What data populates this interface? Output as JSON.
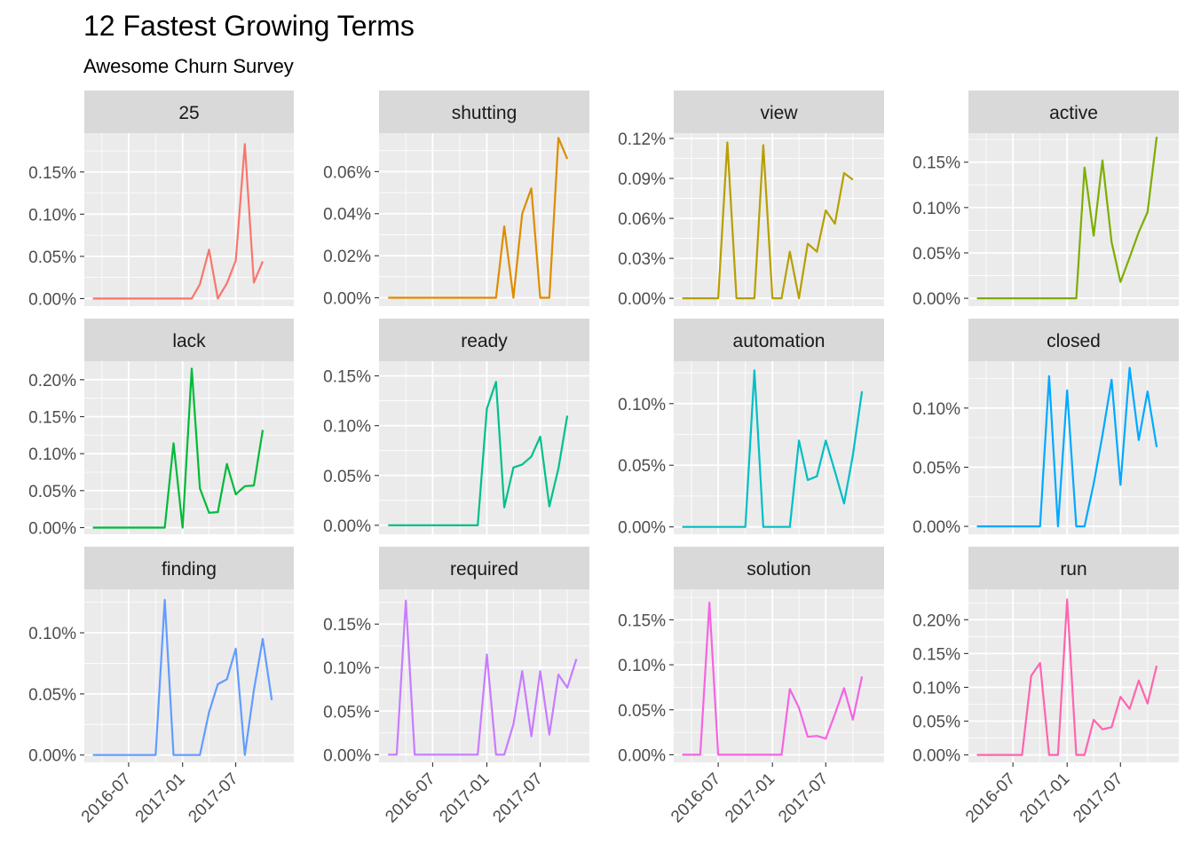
{
  "chart_data": {
    "type": "line",
    "layout": "facet-wrap",
    "title": "12 Fastest Growing Terms",
    "subtitle": "Awesome Churn Survey",
    "x_tick_labels": [
      "2016-07",
      "2017-01",
      "2017-07"
    ],
    "x_tick_values": [
      "2016-07-01",
      "2017-01-01",
      "2017-07-01"
    ],
    "grid": true,
    "legend": "none",
    "panels": [
      {
        "name": "25",
        "color": "#F8766D",
        "start_month": "2016-03",
        "x_range": [
          "2016-02-01",
          "2018-01-15"
        ],
        "y_range": [
          -9e-05,
          0.00196
        ],
        "y_ticks": [
          0,
          0.0005,
          0.001,
          0.0015
        ],
        "y_tick_labels": [
          "0.00%",
          "0.05%",
          "0.10%",
          "0.15%"
        ],
        "values": [
          0,
          0,
          0,
          0,
          0,
          0,
          0,
          0,
          0,
          0,
          0,
          0,
          0.00017,
          0.00058,
          0,
          0.00018,
          0.00045,
          0.00183,
          0.00019,
          0.00044
        ]
      },
      {
        "name": "shutting",
        "color": "#DE8C00",
        "start_month": "2016-02",
        "x_range": [
          "2016-01-01",
          "2017-12-15"
        ],
        "y_range": [
          -4e-05,
          0.000783
        ],
        "y_ticks": [
          0,
          0.0002,
          0.0004,
          0.0006
        ],
        "y_tick_labels": [
          "0.00%",
          "0.02%",
          "0.04%",
          "0.06%"
        ],
        "values": [
          0,
          0,
          0,
          0,
          0,
          0,
          0,
          0,
          0,
          0,
          0,
          0,
          0,
          0.00034,
          0,
          0.0004,
          0.00052,
          0,
          0,
          0.00076,
          0.00066
        ]
      },
      {
        "name": "view",
        "color": "#B79F00",
        "start_month": "2016-03",
        "x_range": [
          "2016-02-01",
          "2018-01-15"
        ],
        "y_range": [
          -5.91e-05,
          0.00124
        ],
        "y_ticks": [
          0,
          0.0003,
          0.0006,
          0.0009,
          0.0012
        ],
        "y_tick_labels": [
          "0.00%",
          "0.03%",
          "0.06%",
          "0.09%",
          "0.12%"
        ],
        "values": [
          0,
          0,
          0,
          0,
          0,
          0.00117,
          0,
          0,
          0,
          0.00115,
          0,
          0,
          0.00035,
          0,
          0.00041,
          0.00035,
          0.00066,
          0.00056,
          0.00094,
          0.00089
        ]
      },
      {
        "name": "active",
        "color": "#7CAE00",
        "start_month": "2016-03",
        "x_range": [
          "2016-02-01",
          "2018-01-15"
        ],
        "y_range": [
          -8.69e-05,
          0.00182
        ],
        "y_ticks": [
          0,
          0.0005,
          0.001,
          0.0015
        ],
        "y_tick_labels": [
          "0.00%",
          "0.05%",
          "0.10%",
          "0.15%"
        ],
        "values": [
          0,
          0,
          0,
          0,
          0,
          0,
          0,
          0,
          0,
          0,
          0,
          0,
          0.00144,
          0.00069,
          0.00152,
          0.00062,
          0.00018,
          0.00045,
          0.00073,
          0.00095,
          0.00178
        ]
      },
      {
        "name": "lack",
        "color": "#00BA38",
        "start_month": "2016-03",
        "x_range": [
          "2016-02-01",
          "2018-01-15"
        ],
        "y_range": [
          -9e-05,
          0.00225
        ],
        "y_ticks": [
          0,
          0.0005,
          0.001,
          0.0015,
          0.002
        ],
        "y_tick_labels": [
          "0.00%",
          "0.05%",
          "0.10%",
          "0.15%",
          "0.20%"
        ],
        "values": [
          0,
          0,
          0,
          0,
          0,
          0,
          0,
          0,
          0,
          0.00114,
          0,
          0.00215,
          0.00053,
          0.0002,
          0.00021,
          0.00086,
          0.00045,
          0.00056,
          0.00057,
          0.00132
        ]
      },
      {
        "name": "ready",
        "color": "#00C08B",
        "start_month": "2016-02",
        "x_range": [
          "2016-01-01",
          "2017-12-15"
        ],
        "y_range": [
          -9e-05,
          0.001647
        ],
        "y_ticks": [
          0,
          0.0005,
          0.001,
          0.0015
        ],
        "y_tick_labels": [
          "0.00%",
          "0.05%",
          "0.10%",
          "0.15%"
        ],
        "values": [
          0,
          0,
          0,
          0,
          0,
          0,
          0,
          0,
          0,
          0,
          0,
          0.00117,
          0.00144,
          0.00018,
          0.00058,
          0.00061,
          0.00069,
          0.00089,
          0.00019,
          0.00057,
          0.0011
        ]
      },
      {
        "name": "automation",
        "color": "#00BFC4",
        "start_month": "2016-03",
        "x_range": [
          "2016-02-01",
          "2018-01-15"
        ],
        "y_range": [
          -6e-05,
          0.001344
        ],
        "y_ticks": [
          0,
          0.0005,
          0.001
        ],
        "y_tick_labels": [
          "0.00%",
          "0.05%",
          "0.10%"
        ],
        "values": [
          0,
          0,
          0,
          0,
          0,
          0,
          0,
          0,
          0.00127,
          0,
          0,
          0,
          0,
          0.0007,
          0.00038,
          0.00041,
          0.0007,
          0.00045,
          0.00019,
          0.00058,
          0.0011
        ]
      },
      {
        "name": "closed",
        "color": "#00A9FF",
        "start_month": "2016-03",
        "x_range": [
          "2016-02-01",
          "2018-01-15"
        ],
        "y_range": [
          -6.67e-05,
          0.001396
        ],
        "y_ticks": [
          0,
          0.0005,
          0.001
        ],
        "y_tick_labels": [
          "0.00%",
          "0.05%",
          "0.10%"
        ],
        "values": [
          0,
          0,
          0,
          0,
          0,
          0,
          0,
          0,
          0.00127,
          0,
          0.00115,
          0,
          0,
          0.00036,
          0.00077,
          0.00124,
          0.00035,
          0.00134,
          0.00073,
          0.00114,
          0.00067
        ]
      },
      {
        "name": "finding",
        "color": "#619CFF",
        "start_month": "2016-03",
        "x_range": [
          "2016-02-01",
          "2018-01-15"
        ],
        "y_range": [
          -6e-05,
          0.001356
        ],
        "y_ticks": [
          0,
          0.0005,
          0.001
        ],
        "y_tick_labels": [
          "0.00%",
          "0.05%",
          "0.10%"
        ],
        "values": [
          0,
          0,
          0,
          0,
          0,
          0,
          0,
          0,
          0.00127,
          0,
          0,
          0,
          0,
          0.00035,
          0.00058,
          0.00062,
          0.00087,
          0,
          0.00053,
          0.00095,
          0.00045
        ]
      },
      {
        "name": "required",
        "color": "#C77CFF",
        "start_month": "2016-02",
        "x_range": [
          "2016-01-01",
          "2017-12-15"
        ],
        "y_range": [
          -8.89e-05,
          0.0019
        ],
        "y_ticks": [
          0,
          0.0005,
          0.001,
          0.0015
        ],
        "y_tick_labels": [
          "0.00%",
          "0.05%",
          "0.10%",
          "0.15%"
        ],
        "values": [
          0,
          0,
          0.00177,
          0,
          0,
          0,
          0,
          0,
          0,
          0,
          0,
          0.00115,
          0,
          0,
          0.00035,
          0.00096,
          0.00021,
          0.00096,
          0.00023,
          0.00092,
          0.00077,
          0.0011
        ]
      },
      {
        "name": "solution",
        "color": "#F564E3",
        "start_month": "2016-03",
        "x_range": [
          "2016-02-01",
          "2018-01-15"
        ],
        "y_range": [
          -8.44e-05,
          0.001839
        ],
        "y_ticks": [
          0,
          0.0005,
          0.001,
          0.0015
        ],
        "y_tick_labels": [
          "0.00%",
          "0.05%",
          "0.10%",
          "0.15%"
        ],
        "values": [
          0,
          0,
          0,
          0.00169,
          0,
          0,
          0,
          0,
          0,
          0,
          0,
          0,
          0.00073,
          0.00052,
          0.0002,
          0.00021,
          0.00018,
          0.00045,
          0.00074,
          0.00039,
          0.00087
        ]
      },
      {
        "name": "run",
        "color": "#FF64B0",
        "start_month": "2016-03",
        "x_range": [
          "2016-02-01",
          "2018-01-15"
        ],
        "y_range": [
          -0.00011,
          0.00245
        ],
        "y_ticks": [
          0,
          0.0005,
          0.001,
          0.0015,
          0.002
        ],
        "y_tick_labels": [
          "0.00%",
          "0.05%",
          "0.10%",
          "0.15%",
          "0.20%"
        ],
        "values": [
          0,
          0,
          0,
          0,
          0,
          0,
          0.00117,
          0.00136,
          0,
          0,
          0.0023,
          0,
          0,
          0.00052,
          0.00038,
          0.00041,
          0.00086,
          0.00068,
          0.0011,
          0.00076,
          0.00132
        ]
      }
    ]
  }
}
